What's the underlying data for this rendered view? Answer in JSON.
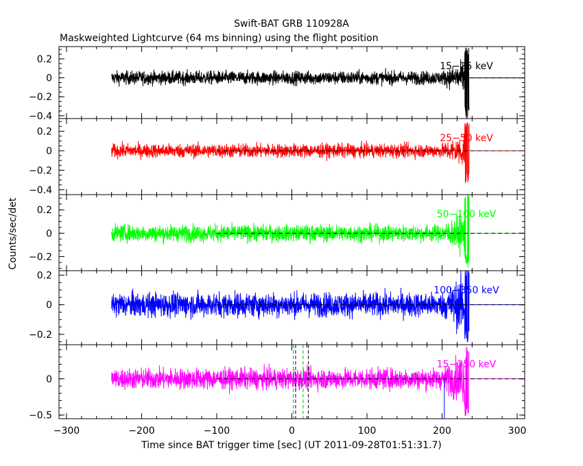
{
  "chart_data": {
    "type": "line",
    "title": "Swift-BAT GRB 110928A",
    "subtitle": "Maskweighted Lightcurve (64 ms binning) using the flight position",
    "xlabel": "Time since BAT trigger time [sec] (UT 2011-09-28T01:51:31.7)",
    "ylabel": "Counts/sec/det",
    "xlim": [
      -310,
      310
    ],
    "xticks": [
      -300,
      -200,
      -100,
      0,
      100,
      200,
      300
    ],
    "xtick_labels": [
      "−300",
      "−200",
      "−100",
      "0",
      "100",
      "200",
      "300"
    ],
    "data_range": [
      -240,
      236
    ],
    "dashed_baseline_from": -100,
    "panels": [
      {
        "name": "15−25 keV",
        "color": "#000000",
        "ylim": [
          -0.43,
          0.33
        ],
        "yticks": [
          -0.4,
          -0.2,
          0,
          0.2
        ],
        "ytick_labels": [
          "−0.4",
          "−0.2",
          "0",
          "0.2"
        ],
        "noise_amp": 0.07,
        "spike_max": 0.32,
        "spike_min": -0.45
      },
      {
        "name": "25−50 keV",
        "color": "#ff0000",
        "ylim": [
          -0.45,
          0.33
        ],
        "yticks": [
          -0.4,
          -0.2,
          0,
          0.2
        ],
        "ytick_labels": [
          "−0.4",
          "−0.2",
          "0",
          "0.2"
        ],
        "noise_amp": 0.07,
        "spike_max": 0.3,
        "spike_min": -0.38
      },
      {
        "name": "50−100 keV",
        "color": "#00ff00",
        "ylim": [
          -0.32,
          0.33
        ],
        "yticks": [
          -0.2,
          0,
          0.2
        ],
        "ytick_labels": [
          "−0.2",
          "0",
          "0.2"
        ],
        "noise_amp": 0.07,
        "spike_max": 0.35,
        "spike_min": -0.3
      },
      {
        "name": "100−350 keV",
        "color": "#0000ff",
        "ylim": [
          -0.27,
          0.23
        ],
        "yticks": [
          -0.2,
          0,
          0.2
        ],
        "ytick_labels": [
          "−0.2",
          "0",
          "0.2"
        ],
        "noise_amp": 0.08,
        "spike_max": 0.25,
        "spike_min": -0.27
      },
      {
        "name": "15−350 keV",
        "color": "#ff00ff",
        "ylim": [
          -0.55,
          0.47
        ],
        "yticks": [
          -0.5,
          0
        ],
        "ytick_labels": [
          "−0.5",
          "0"
        ],
        "noise_amp": 0.14,
        "spike_max": 0.45,
        "spike_min": -0.55
      }
    ],
    "markers": [
      {
        "x": 2,
        "color": "#00c000"
      },
      {
        "x": 5,
        "color": "#000000"
      },
      {
        "x": 15,
        "color": "#00c000"
      },
      {
        "x": 22,
        "color": "#000000"
      }
    ],
    "end_marker_x": 203
  }
}
